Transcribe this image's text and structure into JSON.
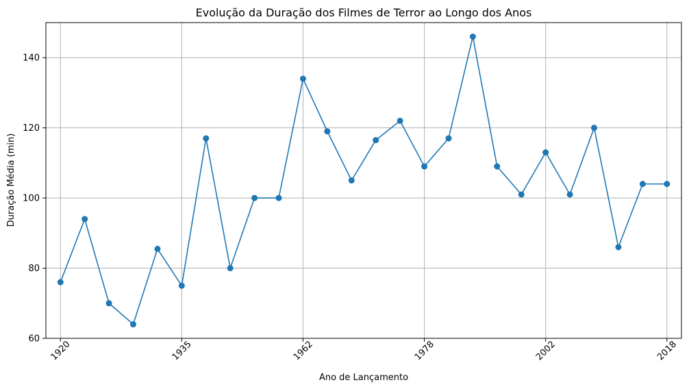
{
  "chart_data": {
    "type": "line",
    "title": "Evolução da Duração dos Filmes de Terror ao Longo dos Anos",
    "xlabel": "Ano de Lançamento",
    "ylabel": "Duração Média (min)",
    "x_tick_labels": [
      "1920",
      "1935",
      "1962",
      "1978",
      "2002",
      "2018"
    ],
    "x_tick_index": [
      0,
      5,
      10,
      15,
      20,
      25
    ],
    "yticks": [
      60,
      80,
      100,
      120,
      140
    ],
    "ylim": [
      60,
      150
    ],
    "xlim": [
      -0.6,
      25.6
    ],
    "grid": true,
    "series_color": "#1f77b4",
    "values": [
      76,
      94,
      70,
      64,
      85.5,
      75,
      117,
      80,
      100,
      100,
      134,
      119,
      105,
      116.5,
      122,
      109,
      117,
      146,
      109,
      101,
      113,
      101,
      120,
      86,
      104,
      104
    ]
  }
}
